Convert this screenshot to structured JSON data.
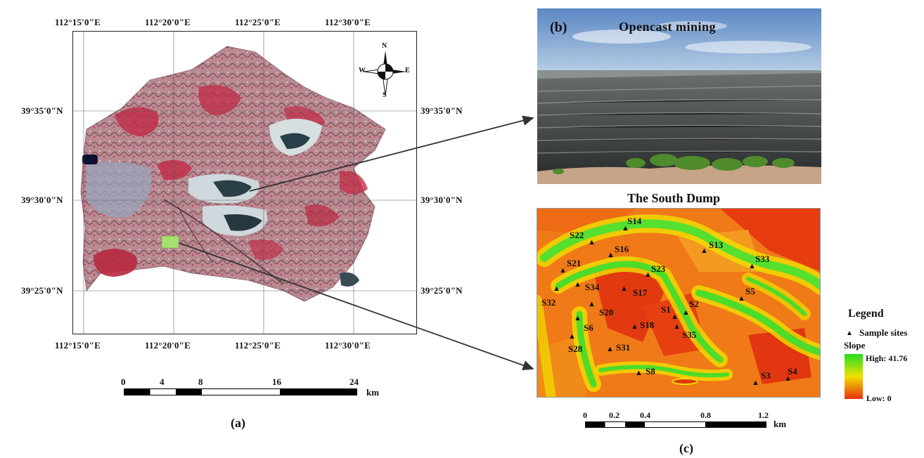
{
  "panel_a": {
    "label": "(a)",
    "top_lon": [
      "112°15'0\"E",
      "112°20'0\"E",
      "112°25'0\"E",
      "112°30'0\"E"
    ],
    "bottom_lon": [
      "112°15'0\"E",
      "112°20'0\"E",
      "112°25'0\"E",
      "112°30'0\"E"
    ],
    "left_lat": [
      "39°35'0\"N",
      "39°30'0\"N",
      "39°25'0\"N"
    ],
    "right_lat": [
      "39°35'0\"N",
      "39°30'0\"N",
      "39°25'0\"N"
    ],
    "compass": {
      "n": "N",
      "s": "S",
      "w": "W",
      "e": "E"
    },
    "scale": {
      "ticks": [
        "0",
        "4",
        "8",
        "16",
        "24"
      ],
      "unit": "km"
    }
  },
  "panel_b": {
    "label": "(b)",
    "title": "Opencast mining"
  },
  "panel_c": {
    "label": "(c)",
    "title": "The South Dump",
    "sites": [
      "S14",
      "S22",
      "S16",
      "S13",
      "S33",
      "S21",
      "S23",
      "S34",
      "S17",
      "S5",
      "S32",
      "S1",
      "S2",
      "S20",
      "S6",
      "S18",
      "S35",
      "S28",
      "S31",
      "S8",
      "S3",
      "S4"
    ],
    "scale": {
      "ticks": [
        "0",
        "0.2",
        "0.4",
        "0.8",
        "1.2"
      ],
      "unit": "km"
    },
    "legend": {
      "title": "Legend",
      "sites_label": "Sample sites",
      "slope_label": "Slope",
      "high": "High: 41.76",
      "low": "Low: 0"
    }
  },
  "colors": {
    "slope_high": "#22dd22",
    "slope_mid": "#f0e000",
    "slope_low": "#e83010",
    "vegetation": "#c0304a"
  }
}
